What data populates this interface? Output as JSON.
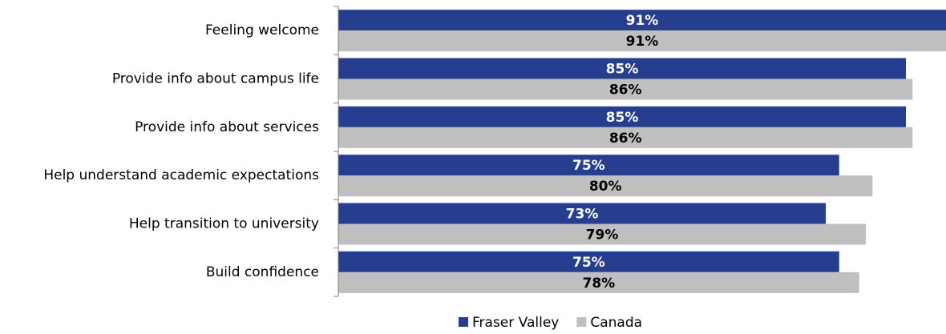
{
  "chart_data": {
    "type": "bar",
    "orientation": "horizontal",
    "categories": [
      "Feeling welcome",
      "Provide info about campus life",
      "Provide info about services",
      "Help understand academic expectations",
      "Help transition to university",
      "Build confidence"
    ],
    "series": [
      {
        "name": "Fraser Valley",
        "color": "#253e8f",
        "values": [
          91,
          85,
          85,
          75,
          73,
          75
        ],
        "value_labels": [
          "91%",
          "85%",
          "85%",
          "75%",
          "73%",
          "75%"
        ]
      },
      {
        "name": "Canada",
        "color": "#bfbfbf",
        "values": [
          91,
          86,
          86,
          80,
          79,
          78
        ],
        "value_labels": [
          "91%",
          "86%",
          "86%",
          "80%",
          "79%",
          "78%"
        ]
      }
    ],
    "xlim": [
      0,
      91
    ],
    "legend": "bottom"
  }
}
